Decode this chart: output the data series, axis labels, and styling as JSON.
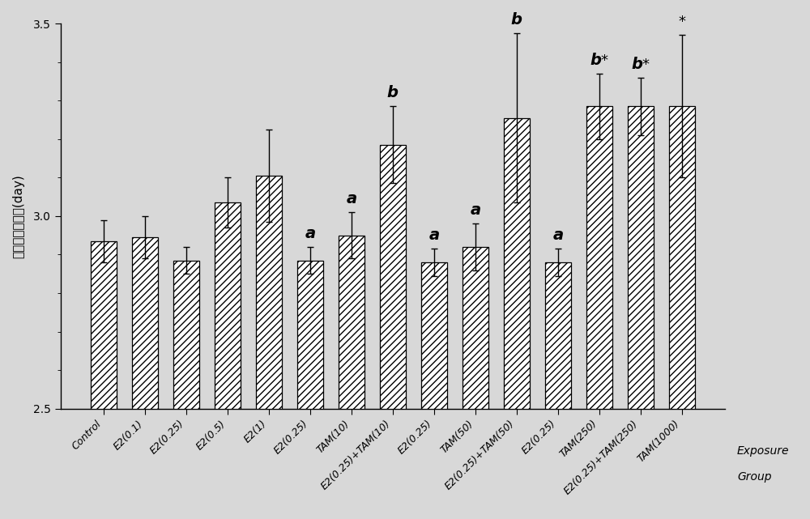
{
  "categories": [
    "Control",
    "E2(0.1)",
    "E2(0.25)",
    "E2(0.5)",
    "E2(1)",
    "E2(0.25)",
    "TAM(10)",
    "E2(0.25)+TAM(10)",
    "E2(0.25)",
    "TAM(50)",
    "E2(0.25)+TAM(50)",
    "E2(0.25)",
    "TAM(250)",
    "E2(0.25)+TAM(250)",
    "TAM(1000)"
  ],
  "values": [
    2.935,
    2.945,
    2.885,
    3.035,
    3.105,
    2.885,
    2.95,
    3.185,
    2.88,
    2.92,
    3.255,
    2.88,
    3.285,
    3.285,
    3.285
  ],
  "errors": [
    0.055,
    0.055,
    0.035,
    0.065,
    0.12,
    0.035,
    0.06,
    0.1,
    0.035,
    0.06,
    0.22,
    0.035,
    0.085,
    0.075,
    0.185
  ],
  "annotations": [
    "",
    "",
    "",
    "",
    "",
    "a",
    "a",
    "b",
    "a",
    "a",
    "b",
    "a",
    "b*",
    "b*",
    "*"
  ],
  "annotation_fontsize": 13,
  "ylabel_chinese": "鱼马胚孵化时间(day)",
  "xlabel_line1": "Exposure",
  "xlabel_line2": "Group",
  "ylim": [
    2.5,
    3.5
  ],
  "yticks": [
    2.5,
    3.0,
    3.5
  ],
  "bar_color": "white",
  "bar_edgecolor": "black",
  "hatch": "////",
  "background_color": "#d8d8d8",
  "figsize": [
    10.0,
    6.41
  ],
  "dpi": 100
}
